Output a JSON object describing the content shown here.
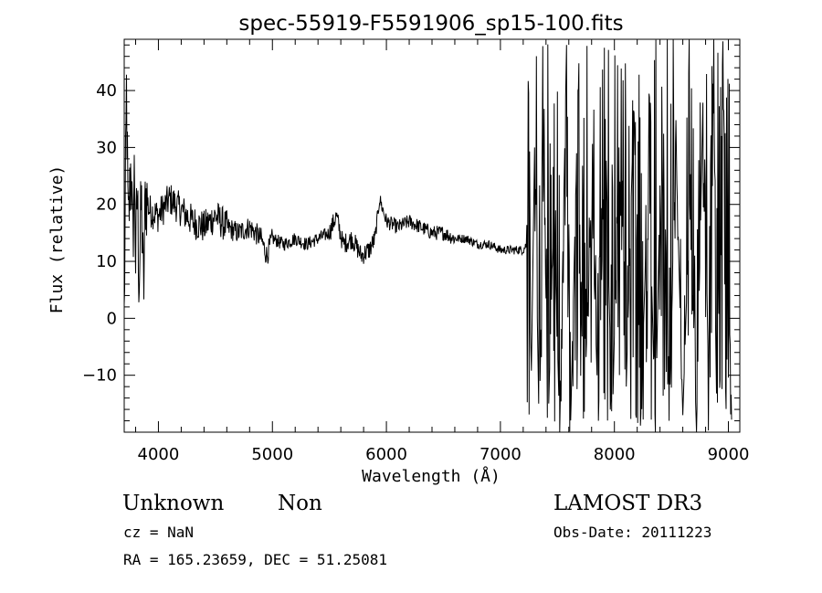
{
  "chart_data": {
    "type": "line",
    "title": "spec-55919-F5591906_sp15-100.fits",
    "xlabel": "Wavelength (Å)",
    "ylabel": "Flux (relative)",
    "xlim": [
      3700,
      9100
    ],
    "ylim": [
      -20,
      49
    ],
    "xticks": [
      4000,
      5000,
      6000,
      7000,
      8000,
      9000
    ],
    "yticks": [
      -10,
      0,
      10,
      20,
      30,
      40
    ],
    "grid": false,
    "series": [
      {
        "name": "flux",
        "segments": [
          {
            "x_start": 3700,
            "x_end": 3900,
            "pattern": "noisy",
            "base": 17,
            "amp": 8
          },
          {
            "x_start": 3900,
            "x_end": 4600,
            "pattern": "noisy",
            "base": 18,
            "amp": 3
          },
          {
            "x_start": 4600,
            "x_end": 5000,
            "pattern": "noisy",
            "base": 15,
            "amp": 2
          },
          {
            "x_start": 5000,
            "x_end": 5500,
            "pattern": "noisy",
            "base": 13.5,
            "amp": 1.2
          },
          {
            "x_start": 5500,
            "x_end": 5900,
            "pattern": "noisy",
            "base": 14.5,
            "amp": 1.8
          },
          {
            "x_start": 5900,
            "x_end": 6600,
            "pattern": "noisy",
            "base": 16,
            "amp": 1.3
          },
          {
            "x_start": 6600,
            "x_end": 7230,
            "pattern": "noisy",
            "base": 13,
            "amp": 0.8
          },
          {
            "x_start": 7230,
            "x_end": 9030,
            "pattern": "extreme",
            "base": 15,
            "amp": 35
          }
        ],
        "points": [
          [
            3700,
            0
          ],
          [
            3720,
            40
          ],
          [
            3735,
            15
          ],
          [
            3760,
            28
          ],
          [
            3775,
            12
          ],
          [
            3790,
            27
          ],
          [
            3800,
            10
          ],
          [
            3815,
            23
          ],
          [
            3830,
            6
          ],
          [
            3850,
            21
          ],
          [
            3870,
            4
          ],
          [
            3885,
            22
          ],
          [
            3920,
            19
          ],
          [
            4000,
            18
          ],
          [
            4100,
            21
          ],
          [
            4200,
            19
          ],
          [
            4300,
            17
          ],
          [
            4400,
            16
          ],
          [
            4500,
            18
          ],
          [
            4600,
            16
          ],
          [
            4700,
            15
          ],
          [
            4800,
            16
          ],
          [
            4900,
            14
          ],
          [
            4950,
            11
          ],
          [
            5000,
            14
          ],
          [
            5100,
            13
          ],
          [
            5200,
            14
          ],
          [
            5300,
            13
          ],
          [
            5400,
            14
          ],
          [
            5500,
            15
          ],
          [
            5560,
            18
          ],
          [
            5620,
            13
          ],
          [
            5700,
            14
          ],
          [
            5780,
            11
          ],
          [
            5850,
            12
          ],
          [
            5900,
            14
          ],
          [
            5940,
            21
          ],
          [
            6000,
            17
          ],
          [
            6100,
            16
          ],
          [
            6200,
            17
          ],
          [
            6300,
            16
          ],
          [
            6400,
            15
          ],
          [
            6500,
            15
          ],
          [
            6600,
            14
          ],
          [
            6700,
            14
          ],
          [
            6800,
            13
          ],
          [
            6900,
            13
          ],
          [
            7000,
            12
          ],
          [
            7100,
            12
          ],
          [
            7200,
            12
          ],
          [
            7230,
            13
          ],
          [
            7250,
            47
          ],
          [
            7270,
            -12
          ],
          [
            7300,
            30
          ],
          [
            7340,
            -20
          ],
          [
            7380,
            25
          ],
          [
            7420,
            -18
          ],
          [
            7470,
            20
          ],
          [
            7520,
            -20
          ],
          [
            7580,
            48
          ],
          [
            7620,
            -15
          ],
          [
            7680,
            40
          ],
          [
            7730,
            -20
          ],
          [
            7800,
            22
          ],
          [
            7860,
            -18
          ],
          [
            7920,
            35
          ],
          [
            7980,
            -20
          ],
          [
            8040,
            30
          ],
          [
            8100,
            -15
          ],
          [
            8170,
            38
          ],
          [
            8230,
            -18
          ],
          [
            8300,
            28
          ],
          [
            8360,
            -20
          ],
          [
            8420,
            45
          ],
          [
            8480,
            -18
          ],
          [
            8540,
            30
          ],
          [
            8600,
            -17
          ],
          [
            8660,
            20
          ],
          [
            8720,
            -20
          ],
          [
            8780,
            42
          ],
          [
            8820,
            -5
          ],
          [
            8860,
            48
          ],
          [
            8900,
            -20
          ],
          [
            8950,
            45
          ],
          [
            8990,
            -10
          ],
          [
            9010,
            2
          ],
          [
            9030,
            -20
          ]
        ]
      }
    ]
  },
  "info": {
    "object_class": "Unknown",
    "object_subclass": "Non",
    "survey": "LAMOST DR3",
    "cz_line": "cz = NaN",
    "obs_date_line": "Obs-Date: 20111223",
    "coords_line": "RA = 165.23659, DEC =  51.25081"
  }
}
